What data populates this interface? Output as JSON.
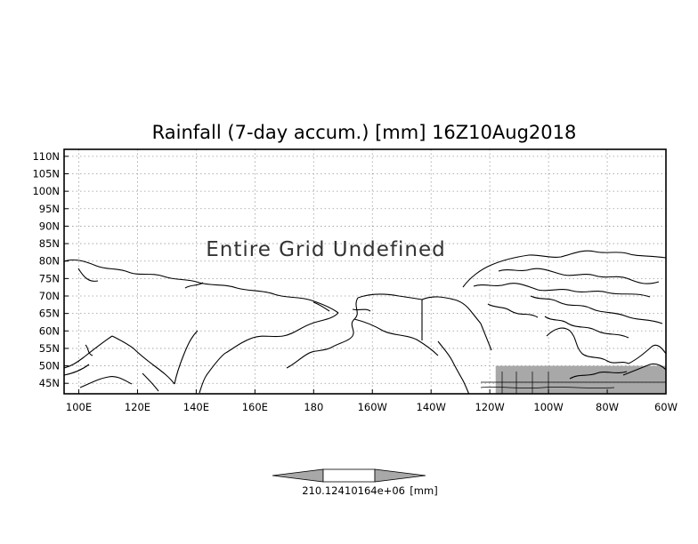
{
  "title": "Rainfall (7-day accum.) [mm] 16Z10Aug2018",
  "overlay_text": "Entire Grid Undefined",
  "map": {
    "lon_range": [
      95,
      300
    ],
    "lat_range": [
      42,
      112
    ],
    "lat_labels": [
      "110N",
      "105N",
      "100N",
      "95N",
      "90N",
      "85N",
      "80N",
      "75N",
      "70N",
      "65N",
      "60N",
      "55N",
      "50N",
      "45N"
    ],
    "lat_values": [
      110,
      105,
      100,
      95,
      90,
      85,
      80,
      75,
      70,
      65,
      60,
      55,
      50,
      45
    ],
    "lon_labels": [
      "100E",
      "120E",
      "140E",
      "160E",
      "180",
      "160W",
      "140W",
      "120W",
      "100W",
      "80W",
      "60W"
    ],
    "lon_values": [
      100,
      120,
      140,
      160,
      180,
      200,
      220,
      240,
      260,
      280,
      300
    ],
    "data_region": {
      "lon": [
        242,
        300
      ],
      "lat": [
        42,
        50
      ],
      "color": "#a8a8a8"
    },
    "gridlines": true
  },
  "colorbar": {
    "labels": [
      "210.124",
      "10164e+06",
      "[mm]"
    ]
  }
}
